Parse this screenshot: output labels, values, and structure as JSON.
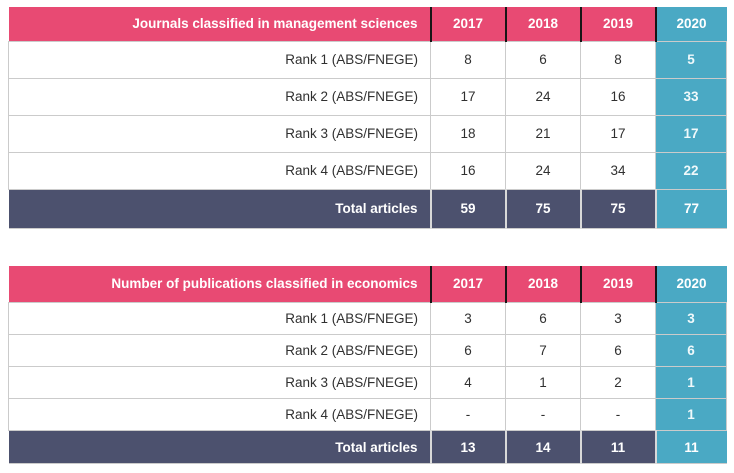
{
  "colors": {
    "header_bg": "#E84A73",
    "accent_2020_bg": "#4AA9C4",
    "total_row_bg": "#4C516E",
    "grid_border": "#CBCBCB",
    "header_divider": "#161616",
    "body_text": "#303030",
    "header_text": "#FFFFFF"
  },
  "tables": [
    {
      "title": "Journals classified in management sciences",
      "years": [
        "2017",
        "2018",
        "2019",
        "2020"
      ],
      "rows": [
        {
          "label": "Rank 1 (ABS/FNEGE)",
          "values": [
            "8",
            "6",
            "8",
            "5"
          ]
        },
        {
          "label": "Rank 2 (ABS/FNEGE)",
          "values": [
            "17",
            "24",
            "16",
            "33"
          ]
        },
        {
          "label": "Rank 3 (ABS/FNEGE)",
          "values": [
            "18",
            "21",
            "17",
            "17"
          ]
        },
        {
          "label": "Rank 4 (ABS/FNEGE)",
          "values": [
            "16",
            "24",
            "34",
            "22"
          ]
        }
      ],
      "total": {
        "label": "Total articles",
        "values": [
          "59",
          "75",
          "75",
          "77"
        ]
      }
    },
    {
      "title": "Number of publications classified in economics",
      "years": [
        "2017",
        "2018",
        "2019",
        "2020"
      ],
      "rows": [
        {
          "label": "Rank 1 (ABS/FNEGE)",
          "values": [
            "3",
            "6",
            "3",
            "3"
          ]
        },
        {
          "label": "Rank 2 (ABS/FNEGE)",
          "values": [
            "6",
            "7",
            "6",
            "6"
          ]
        },
        {
          "label": "Rank 3 (ABS/FNEGE)",
          "values": [
            "4",
            "1",
            "2",
            "1"
          ]
        },
        {
          "label": "Rank 4 (ABS/FNEGE)",
          "values": [
            "-",
            "-",
            "-",
            "1"
          ]
        }
      ],
      "total": {
        "label": "Total articles",
        "values": [
          "13",
          "14",
          "11",
          "11"
        ]
      }
    }
  ]
}
